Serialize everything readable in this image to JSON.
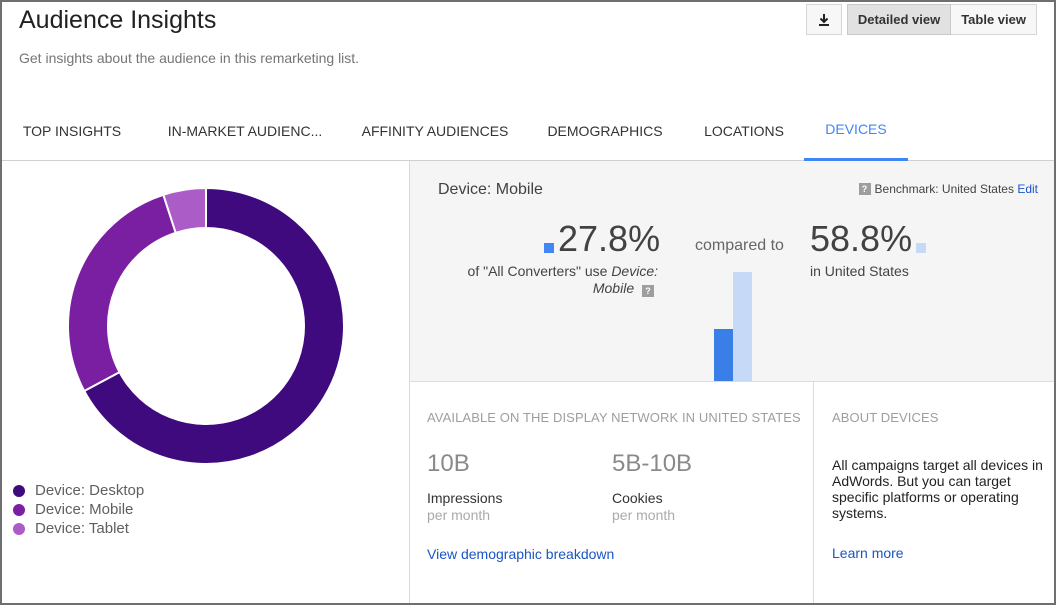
{
  "header": {
    "title": "Audience Insights",
    "subtitle": "Get insights about the audience in this remarketing list.",
    "download_icon": "download-icon",
    "view_buttons": [
      "Detailed view",
      "Table view"
    ],
    "active_view": "Detailed view"
  },
  "tabs": [
    {
      "label": "TOP INSIGHTS"
    },
    {
      "label": "IN-MARKET AUDIENC..."
    },
    {
      "label": "AFFINITY AUDIENCES"
    },
    {
      "label": "DEMOGRAPHICS"
    },
    {
      "label": "LOCATIONS"
    },
    {
      "label": "DEVICES"
    }
  ],
  "active_tab": "DEVICES",
  "colors": {
    "accent": "#4285f4",
    "desktop": "#3f0a7e",
    "mobile": "#7b1fa2",
    "tablet": "#ab5cc7",
    "benchmark_bar": "#c6daf8"
  },
  "device_chart": {
    "legend": [
      {
        "label": "Device: Desktop",
        "color": "#3f0a7e"
      },
      {
        "label": "Device: Mobile",
        "color": "#7b1fa2"
      },
      {
        "label": "Device: Tablet",
        "color": "#ab5cc7"
      }
    ],
    "shares": [
      0.672,
      0.278,
      0.05
    ]
  },
  "comparison": {
    "title": "Device: Mobile",
    "benchmark_label": "Benchmark:",
    "benchmark_value": "United States",
    "edit_label": "Edit",
    "left_value": "27.8%",
    "left_desc_prefix": "of \"All Converters\" use ",
    "left_desc_em": "Device: Mobile",
    "compared_to": "compared to",
    "right_value": "58.8%",
    "right_desc": "in United States",
    "left_fraction": 0.278,
    "right_fraction": 0.588
  },
  "availability": {
    "heading": "AVAILABLE ON THE DISPLAY NETWORK IN UNITED STATES",
    "impressions_value": "10B",
    "impressions_label": "Impressions",
    "impressions_sub": "per month",
    "cookies_value": "5B-10B",
    "cookies_label": "Cookies",
    "cookies_sub": "per month",
    "link": "View demographic breakdown"
  },
  "about": {
    "heading": "ABOUT DEVICES",
    "text": "All campaigns target all devices in AdWords. But you can target specific platforms or operating systems.",
    "link": "Learn more"
  }
}
